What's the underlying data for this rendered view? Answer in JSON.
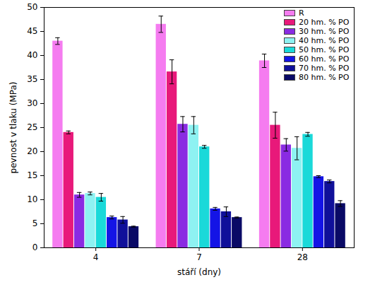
{
  "chart_data": {
    "type": "bar",
    "x_label": "stáří (dny)",
    "y_label": "pevnost v tlaku (MPa)",
    "categories": [
      "4",
      "7",
      "28"
    ],
    "ylim": [
      0,
      50
    ],
    "yticks": [
      0,
      5,
      10,
      15,
      20,
      25,
      30,
      35,
      40,
      45,
      50
    ],
    "legend": "top-right",
    "series": [
      {
        "name": "R",
        "color": "#f57cf0",
        "values": [
          43.0,
          46.5,
          38.9
        ],
        "error": [
          0.7,
          1.7,
          1.4
        ]
      },
      {
        "name": "20 hm. % PO",
        "color": "#e8197a",
        "values": [
          24.0,
          36.6,
          25.5
        ],
        "error": [
          0.3,
          2.5,
          2.7
        ]
      },
      {
        "name": "30 hm. % PO",
        "color": "#8a2be2",
        "values": [
          11.0,
          25.7,
          21.4
        ],
        "error": [
          0.5,
          1.6,
          1.3
        ]
      },
      {
        "name": "40 hm. % PO",
        "color": "#8ef2f2",
        "values": [
          11.3,
          25.5,
          20.7
        ],
        "error": [
          0.3,
          1.8,
          2.4
        ]
      },
      {
        "name": "50 hm. % PO",
        "color": "#1ad9d9",
        "values": [
          10.5,
          21.0,
          23.6
        ],
        "error": [
          0.8,
          0.3,
          0.4
        ]
      },
      {
        "name": "60 hm. % PO",
        "color": "#1414e6",
        "values": [
          6.3,
          8.1,
          14.8
        ],
        "error": [
          0.3,
          0.3,
          0.2
        ]
      },
      {
        "name": "70 hm. % PO",
        "color": "#10109a",
        "values": [
          5.8,
          7.5,
          13.8
        ],
        "error": [
          0.7,
          1.0,
          0.3
        ]
      },
      {
        "name": "80 hm. % PO",
        "color": "#0a0a66",
        "values": [
          4.4,
          6.3,
          9.2
        ],
        "error": [
          0.1,
          0.1,
          0.6
        ]
      }
    ]
  }
}
